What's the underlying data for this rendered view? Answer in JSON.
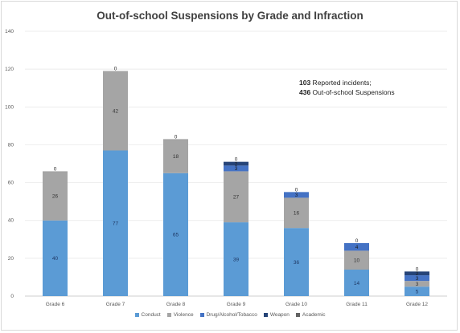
{
  "chart_data": {
    "type": "bar",
    "stacked": true,
    "title": "Out-of-school Suspensions by Grade and Infraction",
    "categories": [
      "Grade 6",
      "Grade 7",
      "Grade 8",
      "Grade 9",
      "Grade 10",
      "Grade 11",
      "Grade 12"
    ],
    "ylim": [
      0,
      140
    ],
    "yticks": [
      0,
      20,
      40,
      60,
      80,
      100,
      120,
      140
    ],
    "grid": true,
    "legend_position": "bottom",
    "series": [
      {
        "name": "Conduct",
        "color": "#5b9bd5",
        "values": [
          40,
          77,
          65,
          39,
          36,
          14,
          5
        ]
      },
      {
        "name": "Violence",
        "color": "#a5a5a5",
        "values": [
          26,
          42,
          18,
          27,
          16,
          10,
          3
        ]
      },
      {
        "name": "Drug/Alcohol/Tobacco",
        "color": "#4472c4",
        "values": [
          0,
          0,
          0,
          3,
          3,
          4,
          3
        ]
      },
      {
        "name": "Weapon",
        "color": "#264478",
        "values": [
          0,
          0,
          0,
          2,
          0,
          0,
          2
        ]
      },
      {
        "name": "Academic",
        "color": "#636363",
        "values": [
          0,
          0,
          0,
          0,
          0,
          0,
          0
        ]
      }
    ],
    "data_labels": [
      [
        "40",
        "77",
        "65",
        "39",
        "36",
        "14",
        "5"
      ],
      [
        "26",
        "42",
        "18",
        "27",
        "16",
        "10",
        "3"
      ],
      [
        "",
        "",
        "",
        "3",
        "3",
        "4",
        "3"
      ],
      [
        "",
        "",
        "",
        "2",
        "",
        "",
        "2"
      ],
      [
        "0",
        "0",
        "0",
        "0",
        "0",
        "0",
        "0"
      ]
    ],
    "annotation": {
      "incidents_count": "103",
      "incidents_label": " Reported incidents;",
      "suspensions_count": "436",
      "suspensions_label": " Out-of-school Suspensions"
    }
  }
}
